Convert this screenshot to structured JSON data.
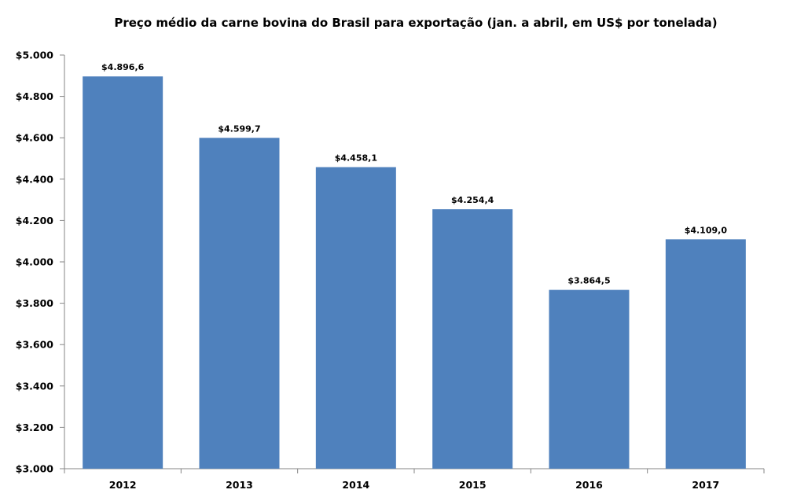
{
  "chart_data": {
    "type": "bar",
    "title": "Preço médio da carne bovina do Brasil  para exportação (jan. a abril, em US$ por tonelada)",
    "xlabel": "",
    "ylabel": "",
    "categories": [
      "2012",
      "2013",
      "2014",
      "2015",
      "2016",
      "2017"
    ],
    "values": [
      4896.6,
      4599.7,
      4458.1,
      4254.4,
      3864.5,
      4109.0
    ],
    "data_labels": [
      "$4.896,6",
      "$4.599,7",
      "$4.458,1",
      "$4.254,4",
      "$3.864,5",
      "$4.109,0"
    ],
    "ylim": [
      3000,
      5000
    ],
    "yticks": [
      3000,
      3200,
      3400,
      3600,
      3800,
      4000,
      4200,
      4400,
      4600,
      4800,
      5000
    ],
    "ytick_labels": [
      "$3.000",
      "$3.200",
      "$3.400",
      "$3.600",
      "$3.800",
      "$4.000",
      "$4.200",
      "$4.400",
      "$4.600",
      "$4.800",
      "$5.000"
    ],
    "bar_color": "#4f81bd",
    "axis_color": "#868686",
    "grid": false,
    "legend": "none"
  }
}
